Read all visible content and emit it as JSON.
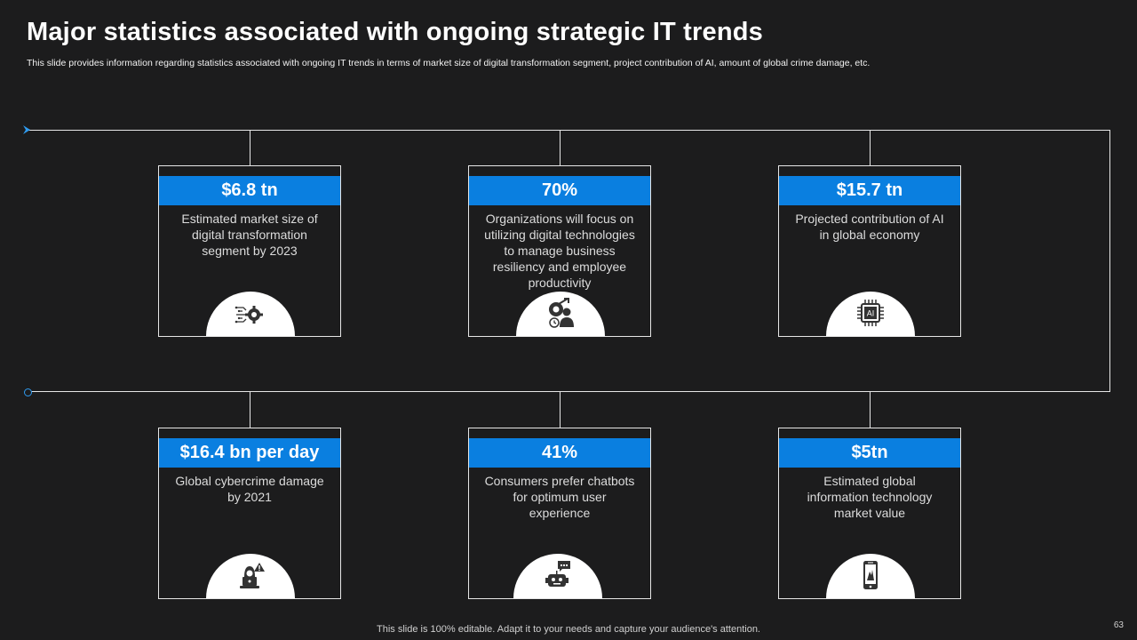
{
  "slide": {
    "title": "Major statistics associated with ongoing strategic IT trends",
    "subtitle": "This slide provides information regarding statistics associated with ongoing IT trends in terms of market size of digital transformation segment, project contribution of AI,    amount of global crime damage, etc.",
    "footer": "This slide is 100% editable. Adapt it to your needs and capture your audience's attention.",
    "page_number": "63"
  },
  "colors": {
    "accent": "#0a7fe0",
    "background": "#1c1c1d",
    "line": "#e6e6e6"
  },
  "cards": [
    {
      "value": "$6.8 tn",
      "description": "Estimated market size of digital transformation segment by 2023",
      "icon": "digital-brain-gear-icon"
    },
    {
      "value": "70%",
      "description": "Organizations will focus on utilizing digital technologies to manage business resiliency and employee productivity",
      "icon": "productivity-gear-person-icon"
    },
    {
      "value": "$15.7 tn",
      "description": "Projected contribution of AI in global economy",
      "icon": "ai-chip-icon",
      "icon_text": "AI"
    },
    {
      "value": "$16.4 bn per day",
      "description": "Global cybercrime damage by 2021",
      "icon": "hacker-warning-icon"
    },
    {
      "value": "41%",
      "description": "Consumers prefer chatbots for optimum user experience",
      "icon": "chatbot-icon"
    },
    {
      "value": "$5tn",
      "description": "Estimated global information technology market value",
      "icon": "mobile-phone-icon"
    }
  ]
}
